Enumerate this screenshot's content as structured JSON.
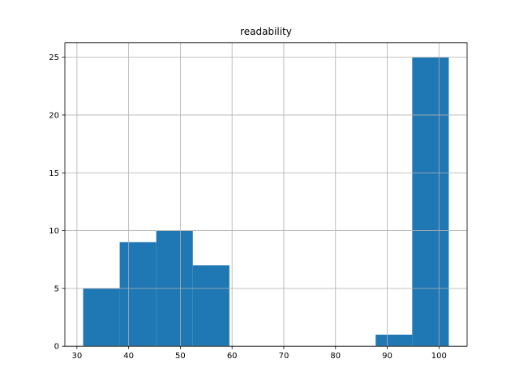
{
  "chart_data": {
    "type": "histogram",
    "title": "readability",
    "bins": [
      31.2,
      38.27,
      45.34,
      52.41,
      59.48,
      66.55,
      73.62,
      80.69,
      87.76,
      94.83,
      101.9
    ],
    "values": [
      5,
      9,
      10,
      7,
      0,
      0,
      0,
      0,
      1,
      25
    ],
    "color": "#1f77b4",
    "xlim": [
      27.67,
      105.44
    ],
    "xticks": [
      30,
      40,
      50,
      60,
      70,
      80,
      90,
      100
    ],
    "ylim": [
      0,
      26.25
    ],
    "yticks": [
      0,
      5,
      10,
      15,
      20,
      25
    ],
    "grid": true
  }
}
